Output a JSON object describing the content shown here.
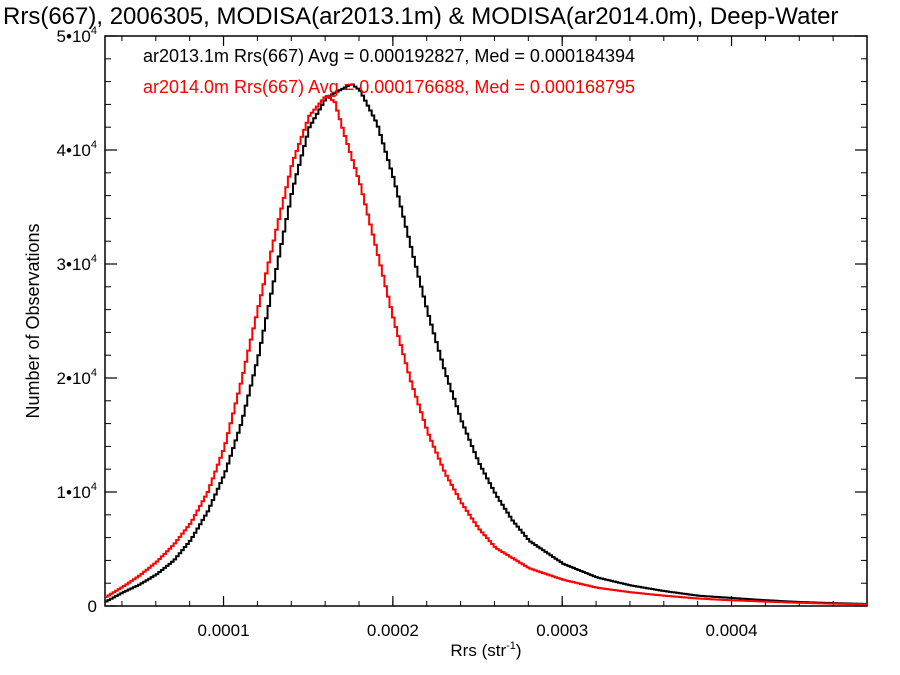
{
  "chart_data": {
    "type": "line",
    "title": "Rrs(667), 2006305, MODISA(ar2013.1m) & MODISA(ar2014.0m), Deep-Water",
    "xlabel_base": "Rrs (str",
    "xlabel_sup": "-1",
    "xlabel_close": ")",
    "ylabel": "Number of Observations",
    "xlim": [
      3e-05,
      0.00048
    ],
    "ylim": [
      0,
      50000
    ],
    "x_ticks": [
      {
        "value": 0.0001,
        "label": "0.0001"
      },
      {
        "value": 0.0002,
        "label": "0.0002"
      },
      {
        "value": 0.0003,
        "label": "0.0003"
      },
      {
        "value": 0.0004,
        "label": "0.0004"
      }
    ],
    "y_ticks": [
      {
        "value": 0,
        "mant": "0",
        "exp": ""
      },
      {
        "value": 10000,
        "mant": "1•10",
        "exp": "4"
      },
      {
        "value": 20000,
        "mant": "2•10",
        "exp": "4"
      },
      {
        "value": 30000,
        "mant": "3•10",
        "exp": "4"
      },
      {
        "value": 40000,
        "mant": "4•10",
        "exp": "4"
      },
      {
        "value": 50000,
        "mant": "5•10",
        "exp": "4"
      }
    ],
    "grid": false,
    "legend_position": "top-left",
    "series": [
      {
        "name": "ar2013.1m",
        "color": "#000000",
        "legend": "ar2013.1m Rrs(667) Avg = 0.000192827, Med = 0.000184394",
        "points": [
          [
            3e-05,
            400
          ],
          [
            4e-05,
            1200
          ],
          [
            5e-05,
            1900
          ],
          [
            6e-05,
            2800
          ],
          [
            7e-05,
            4000
          ],
          [
            8e-05,
            5800
          ],
          [
            9e-05,
            8300
          ],
          [
            0.0001,
            11600
          ],
          [
            0.00011,
            16100
          ],
          [
            0.00012,
            22000
          ],
          [
            0.00013,
            29200
          ],
          [
            0.00014,
            36500
          ],
          [
            0.00015,
            42000
          ],
          [
            0.00016,
            44600
          ],
          [
            0.000175,
            45800
          ],
          [
            0.00018,
            45200
          ],
          [
            0.00019,
            42300
          ],
          [
            0.0002,
            37400
          ],
          [
            0.00021,
            31500
          ],
          [
            0.00022,
            25700
          ],
          [
            0.00023,
            20600
          ],
          [
            0.00024,
            16200
          ],
          [
            0.00025,
            12600
          ],
          [
            0.00026,
            9800
          ],
          [
            0.00027,
            7500
          ],
          [
            0.00028,
            5700
          ],
          [
            0.0003,
            3700
          ],
          [
            0.00032,
            2500
          ],
          [
            0.00034,
            1800
          ],
          [
            0.00036,
            1300
          ],
          [
            0.00038,
            900
          ],
          [
            0.0004,
            700
          ],
          [
            0.00042,
            500
          ],
          [
            0.00044,
            350
          ],
          [
            0.00046,
            250
          ],
          [
            0.00048,
            180
          ]
        ]
      },
      {
        "name": "ar2014.0m",
        "color": "#ff0000",
        "legend": "ar2014.0m Rrs(667) Avg = 0.000176688, Med = 0.000168795",
        "points": [
          [
            3e-05,
            800
          ],
          [
            4e-05,
            1700
          ],
          [
            5e-05,
            2700
          ],
          [
            6e-05,
            3900
          ],
          [
            7e-05,
            5400
          ],
          [
            8e-05,
            7300
          ],
          [
            9e-05,
            10000
          ],
          [
            0.0001,
            14000
          ],
          [
            0.00011,
            19800
          ],
          [
            0.00012,
            26300
          ],
          [
            0.00013,
            32700
          ],
          [
            0.00014,
            38900
          ],
          [
            0.00015,
            43000
          ],
          [
            0.00016,
            44800
          ],
          [
            0.000165,
            44200
          ],
          [
            0.00017,
            41700
          ],
          [
            0.00018,
            37000
          ],
          [
            0.00019,
            31100
          ],
          [
            0.0002,
            25000
          ],
          [
            0.00021,
            19700
          ],
          [
            0.00022,
            15200
          ],
          [
            0.00023,
            11700
          ],
          [
            0.00024,
            9000
          ],
          [
            0.00025,
            6800
          ],
          [
            0.00026,
            5100
          ],
          [
            0.00028,
            3300
          ],
          [
            0.0003,
            2300
          ],
          [
            0.00032,
            1600
          ],
          [
            0.00034,
            1200
          ],
          [
            0.00036,
            900
          ],
          [
            0.00038,
            650
          ],
          [
            0.0004,
            500
          ],
          [
            0.00042,
            380
          ],
          [
            0.00044,
            280
          ],
          [
            0.00046,
            200
          ],
          [
            0.00048,
            150
          ]
        ]
      }
    ]
  }
}
